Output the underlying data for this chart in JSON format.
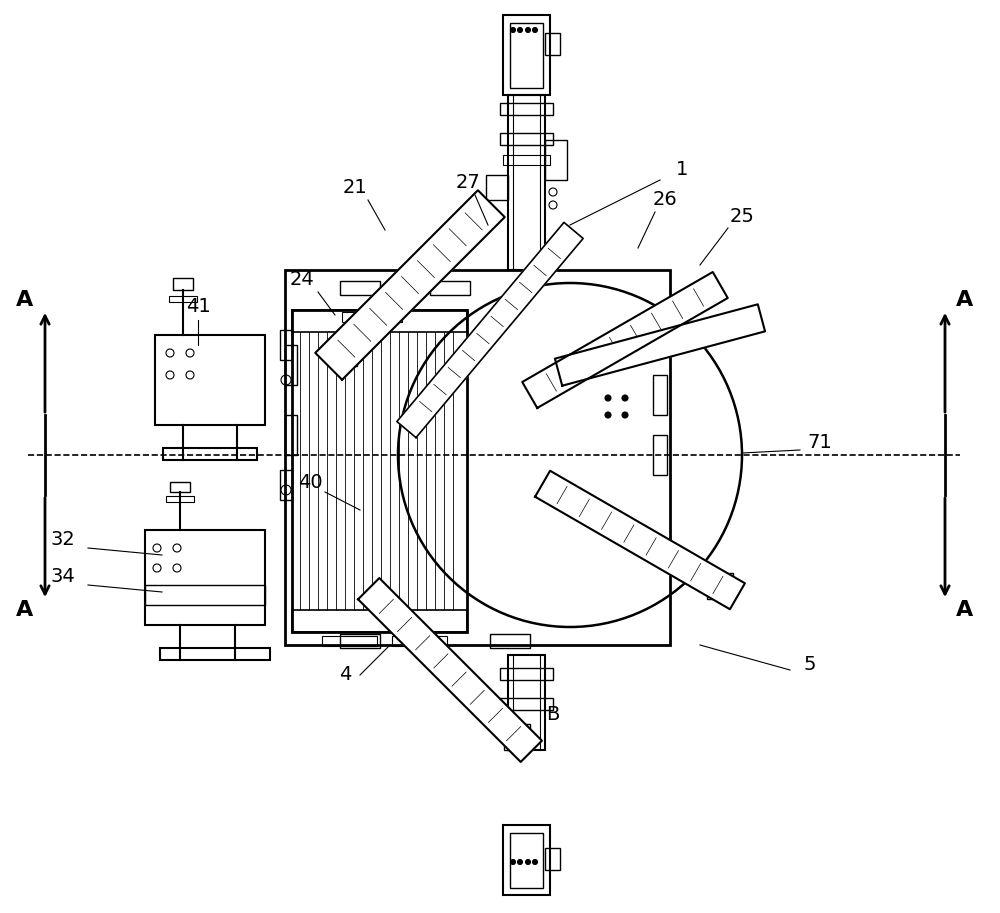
{
  "bg_color": "#ffffff",
  "line_color": "#000000",
  "fig_width": 10.0,
  "fig_height": 9.13,
  "labels": {
    "A_left_top": "A",
    "A_left_bot": "A",
    "A_right_top": "A",
    "A_right_bot": "A",
    "B": "B",
    "n1": "1",
    "n4": "4",
    "n5": "5",
    "n21": "21",
    "n24": "24",
    "n25": "25",
    "n26": "26",
    "n27": "27",
    "n32": "32",
    "n34": "34",
    "n40": "40",
    "n41": "41",
    "n71": "71"
  }
}
